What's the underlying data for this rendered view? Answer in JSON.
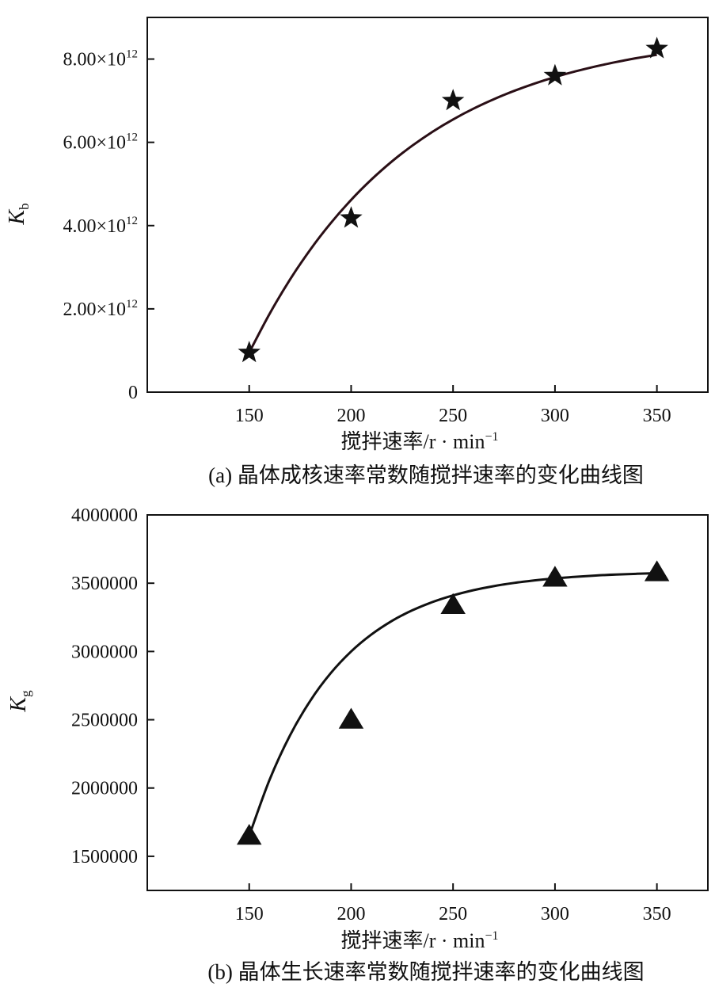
{
  "chart_data": [
    {
      "type": "scatter",
      "panel_id": "a",
      "caption": "(a) 晶体成核速率常数随搅拌速率的变化曲线图",
      "xlabel": "搅拌速率/r · min",
      "xlabel_sup": "−1",
      "ylabel": "K",
      "ylabel_sub": "b",
      "xlim": [
        100,
        375
      ],
      "ylim": [
        0,
        9000000000000.0
      ],
      "x_ticks": [
        150,
        200,
        250,
        300,
        350
      ],
      "x_tick_labels": [
        "150",
        "200",
        "250",
        "300",
        "350"
      ],
      "y_ticks": [
        0,
        2000000000000.0,
        4000000000000.0,
        6000000000000.0,
        8000000000000.0
      ],
      "y_tick_labels": [
        {
          "mantissa": "0",
          "exp": ""
        },
        {
          "mantissa": "2.00×10",
          "exp": "12"
        },
        {
          "mantissa": "4.00×10",
          "exp": "12"
        },
        {
          "mantissa": "6.00×10",
          "exp": "12"
        },
        {
          "mantissa": "8.00×10",
          "exp": "12"
        }
      ],
      "marker": "star",
      "marker_color": "#111111",
      "curve_color": "#2a0f16",
      "x": [
        150,
        200,
        250,
        300,
        350
      ],
      "y": [
        950000000000.0,
        4180000000000.0,
        7000000000000.0,
        7600000000000.0,
        8250000000000.0
      ],
      "fit": "smooth"
    },
    {
      "type": "scatter",
      "panel_id": "b",
      "caption": "(b) 晶体生长速率常数随搅拌速率的变化曲线图",
      "xlabel": "搅拌速率/r · min",
      "xlabel_sup": "−1",
      "ylabel": "K",
      "ylabel_sub": "g",
      "xlim": [
        100,
        375
      ],
      "ylim": [
        1250000,
        4000000
      ],
      "x_ticks": [
        150,
        200,
        250,
        300,
        350
      ],
      "x_tick_labels": [
        "150",
        "200",
        "250",
        "300",
        "350"
      ],
      "y_ticks": [
        1500000,
        2000000,
        2500000,
        3000000,
        3500000,
        4000000
      ],
      "y_tick_labels": [
        {
          "mantissa": "1500000",
          "exp": ""
        },
        {
          "mantissa": "2000000",
          "exp": ""
        },
        {
          "mantissa": "2500000",
          "exp": ""
        },
        {
          "mantissa": "3000000",
          "exp": ""
        },
        {
          "mantissa": "3500000",
          "exp": ""
        },
        {
          "mantissa": "4000000",
          "exp": ""
        }
      ],
      "marker": "triangle",
      "marker_color": "#111111",
      "curve_color": "#111111",
      "x": [
        150,
        200,
        250,
        300,
        350
      ],
      "y": [
        1650000,
        2500000,
        3340000,
        3540000,
        3580000
      ],
      "fit": "smooth"
    }
  ]
}
